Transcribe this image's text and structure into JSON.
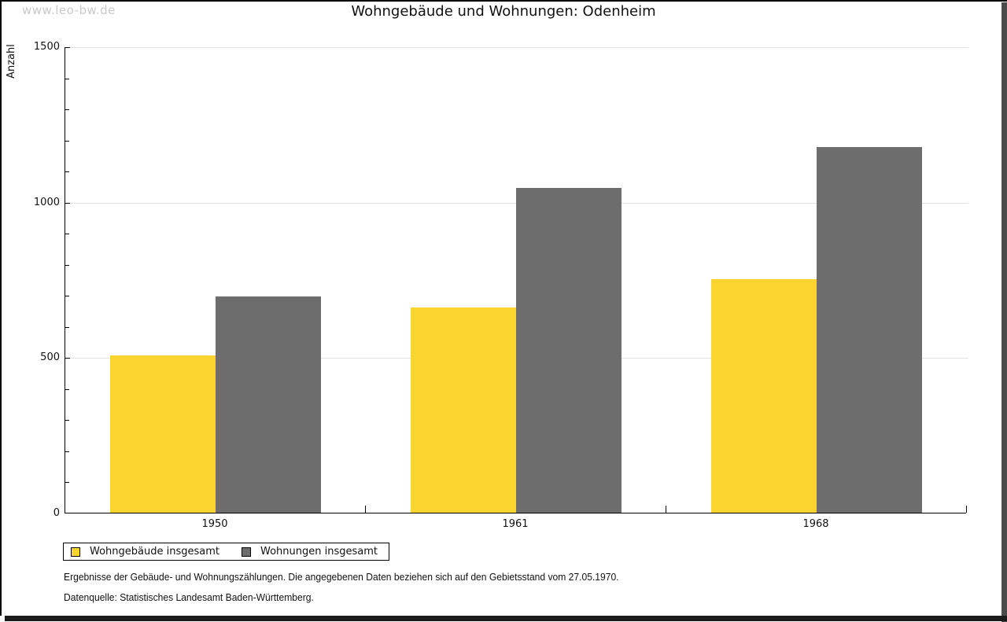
{
  "watermark": "www.leo-bw.de",
  "header": {
    "title": "Wohngebäude und Wohnungen: Odenheim"
  },
  "footnotes": {
    "line1": "Ergebnisse der Gebäude- und Wohnungszählungen. Die angegebenen Daten beziehen sich auf den Gebietsstand vom 27.05.1970.",
    "line2": "Datenquelle: Statistisches Landesamt Baden-Württemberg."
  },
  "colors": {
    "series_yellow": "#fcd42f",
    "series_gray": "#6d6d6d",
    "gridline": "#e2e2e2",
    "axis": "#000000",
    "watermark": "#c9c9c9"
  },
  "chart_data": {
    "type": "bar",
    "title": "Wohngebäude und Wohnungen: Odenheim",
    "categories": [
      "1950",
      "1961",
      "1968"
    ],
    "series": [
      {
        "name": "Wohngebäude insgesamt",
        "color": "#fcd42f",
        "values": [
          505,
          660,
          750
        ]
      },
      {
        "name": "Wohnungen insgesamt",
        "color": "#6d6d6d",
        "values": [
          695,
          1045,
          1175
        ]
      }
    ],
    "xlabel": "",
    "ylabel": "Anzahl",
    "ylim": [
      0,
      1500
    ],
    "yticks": [
      0,
      500,
      1000,
      1500
    ],
    "minor_tick_step": 100,
    "grid": "horizontal-major",
    "legend_position": "bottom-left"
  }
}
